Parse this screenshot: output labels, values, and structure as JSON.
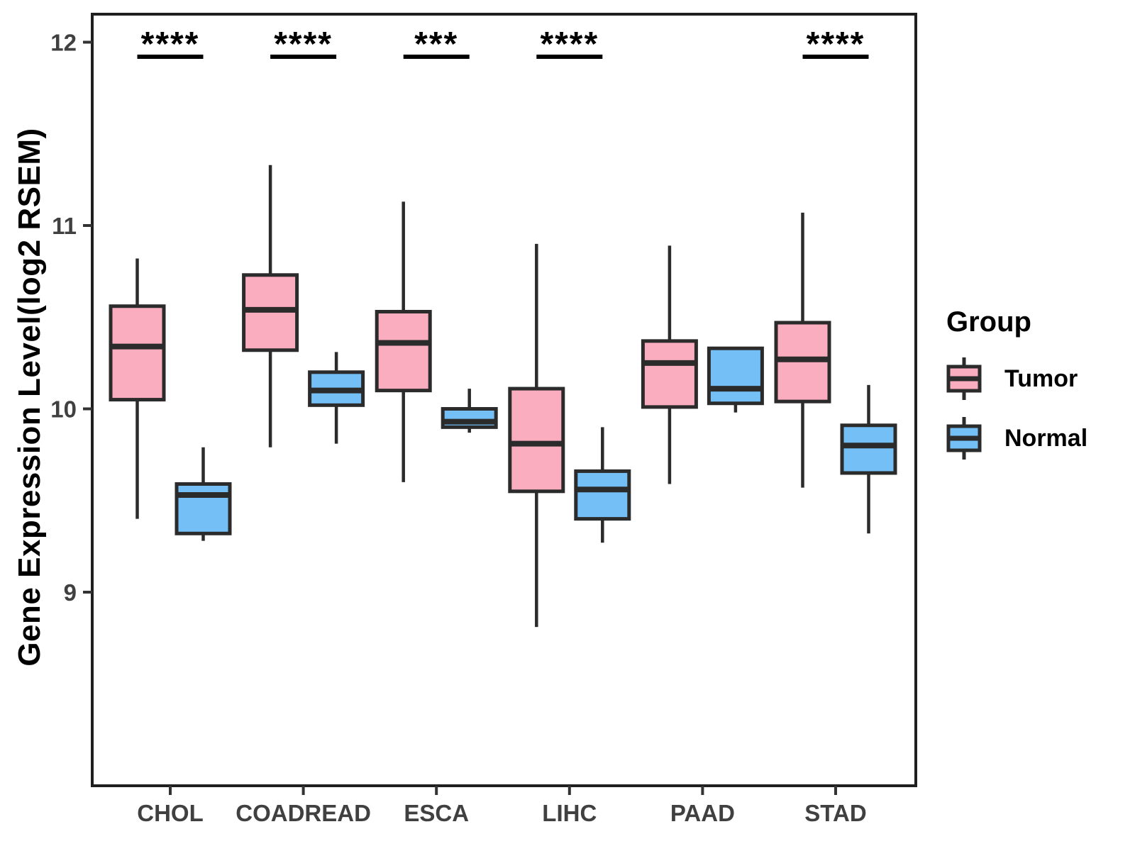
{
  "figure": {
    "background": "#FFFFFF"
  },
  "legend": {
    "title": "Group",
    "entries": [
      {
        "label": "Tumor",
        "color": "#FBADC0"
      },
      {
        "label": "Normal",
        "color": "#73BFF6"
      }
    ]
  },
  "style": {
    "box_stroke": "#2B2B2B",
    "panel_border": "#1F1F1F",
    "tick_stroke": "#333333",
    "axis_text_color": "#404040",
    "significance_color": "#000000",
    "background": "#FFFFFF"
  },
  "chart_data": {
    "type": "box",
    "title": "",
    "xlabel": "",
    "ylabel": "Gene Expression Level(log2 RSEM)",
    "categories": [
      "CHOL",
      "COADREAD",
      "ESCA",
      "LIHC",
      "PAAD",
      "STAD"
    ],
    "y_ticks": [
      9,
      10,
      11,
      12
    ],
    "ylim": [
      7.95,
      12.15
    ],
    "grid": false,
    "legend_position": "right",
    "series": [
      {
        "name": "Tumor",
        "fill": "#FBADC0",
        "boxes": [
          {
            "category": "CHOL",
            "whisker_low": 9.4,
            "q1": 10.05,
            "median": 10.34,
            "q3": 10.56,
            "whisker_high": 10.82
          },
          {
            "category": "COADREAD",
            "whisker_low": 9.79,
            "q1": 10.32,
            "median": 10.54,
            "q3": 10.73,
            "whisker_high": 11.33
          },
          {
            "category": "ESCA",
            "whisker_low": 9.6,
            "q1": 10.1,
            "median": 10.36,
            "q3": 10.53,
            "whisker_high": 11.13
          },
          {
            "category": "LIHC",
            "whisker_low": 8.81,
            "q1": 9.55,
            "median": 9.81,
            "q3": 10.11,
            "whisker_high": 10.9
          },
          {
            "category": "PAAD",
            "whisker_low": 9.59,
            "q1": 10.01,
            "median": 10.25,
            "q3": 10.37,
            "whisker_high": 10.89
          },
          {
            "category": "STAD",
            "whisker_low": 9.57,
            "q1": 10.04,
            "median": 10.27,
            "q3": 10.47,
            "whisker_high": 11.07
          }
        ]
      },
      {
        "name": "Normal",
        "fill": "#73BFF6",
        "boxes": [
          {
            "category": "CHOL",
            "whisker_low": 9.28,
            "q1": 9.32,
            "median": 9.53,
            "q3": 9.59,
            "whisker_high": 9.79
          },
          {
            "category": "COADREAD",
            "whisker_low": 9.81,
            "q1": 10.02,
            "median": 10.1,
            "q3": 10.2,
            "whisker_high": 10.31
          },
          {
            "category": "ESCA",
            "whisker_low": 9.87,
            "q1": 9.9,
            "median": 9.93,
            "q3": 10.0,
            "whisker_high": 10.11
          },
          {
            "category": "LIHC",
            "whisker_low": 9.27,
            "q1": 9.4,
            "median": 9.56,
            "q3": 9.66,
            "whisker_high": 9.9
          },
          {
            "category": "PAAD",
            "whisker_low": 9.98,
            "q1": 10.03,
            "median": 10.11,
            "q3": 10.33,
            "whisker_high": 10.33
          },
          {
            "category": "STAD",
            "whisker_low": 9.32,
            "q1": 9.65,
            "median": 9.8,
            "q3": 9.91,
            "whisker_high": 10.13
          }
        ]
      }
    ],
    "significance": [
      {
        "category": "CHOL",
        "label": "****"
      },
      {
        "category": "COADREAD",
        "label": "****"
      },
      {
        "category": "ESCA",
        "label": "***"
      },
      {
        "category": "LIHC",
        "label": "****"
      },
      {
        "category": "PAAD",
        "label": null
      },
      {
        "category": "STAD",
        "label": "****"
      }
    ]
  }
}
